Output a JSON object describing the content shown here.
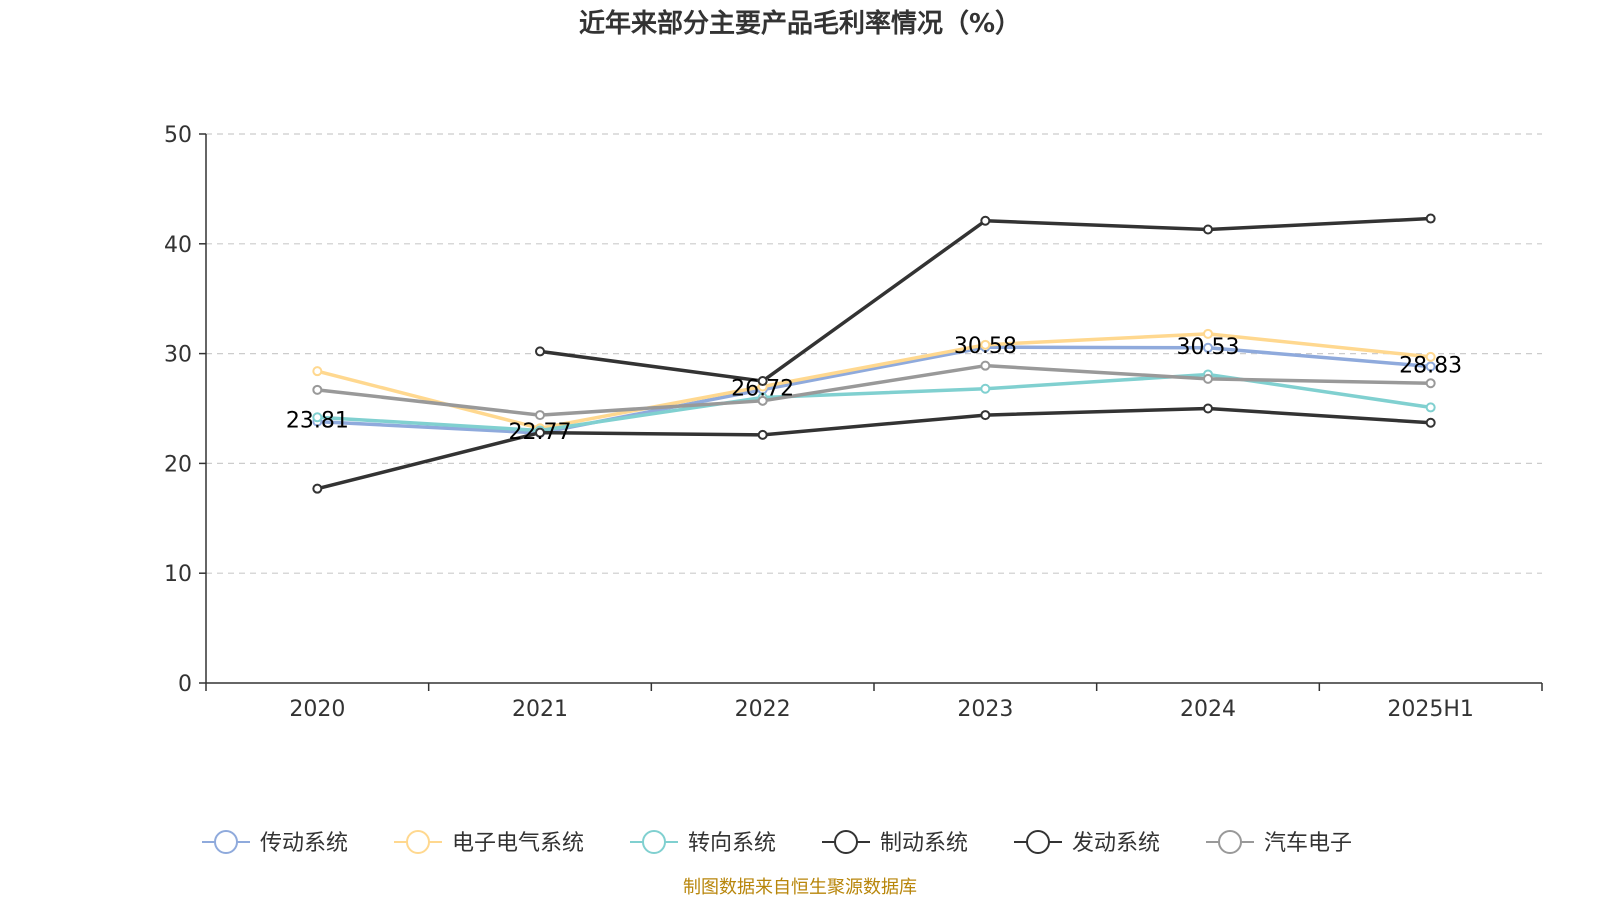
{
  "chart_data": {
    "type": "line",
    "title": "近年来部分主要产品毛利率情况（%）",
    "categories": [
      "2020",
      "2021",
      "2022",
      "2023",
      "2024",
      "2025H1"
    ],
    "ylim": [
      0,
      50
    ],
    "yticks": [
      0,
      10,
      20,
      30,
      40,
      50
    ],
    "grid": true,
    "legend_position": "bottom",
    "series": [
      {
        "name": "传动系统",
        "color": "#8faadc",
        "values": [
          23.81,
          22.77,
          26.72,
          30.58,
          30.53,
          28.83
        ],
        "labels": [
          "23.81",
          "22.77",
          "26.72",
          "30.58",
          "30.53",
          "28.83"
        ]
      },
      {
        "name": "电子电气系统",
        "color": "#ffd88f",
        "values": [
          28.4,
          23.2,
          27.0,
          30.8,
          31.8,
          29.7
        ]
      },
      {
        "name": "转向系统",
        "color": "#80d0d0",
        "values": [
          24.2,
          23.0,
          26.0,
          26.8,
          28.1,
          25.1
        ]
      },
      {
        "name": "制动系统",
        "color": "#333333",
        "values": [
          17.7,
          22.8,
          22.6,
          24.4,
          25.0,
          23.7
        ]
      },
      {
        "name": "发动系统",
        "color": "#333333",
        "values": [
          null,
          30.2,
          27.5,
          42.1,
          41.3,
          42.3
        ]
      },
      {
        "name": "汽车电子",
        "color": "#999999",
        "values": [
          26.7,
          24.4,
          25.7,
          28.9,
          27.7,
          27.3
        ]
      }
    ]
  },
  "source_note": "制图数据来自恒生聚源数据库"
}
